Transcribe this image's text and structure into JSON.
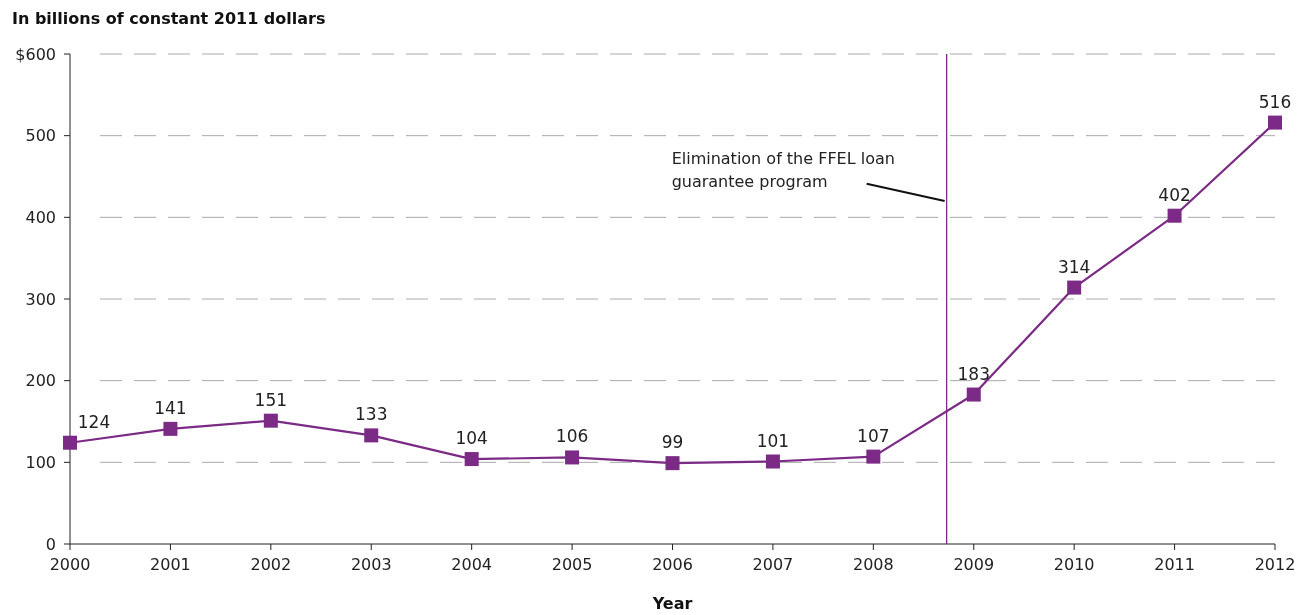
{
  "chart_data": {
    "type": "line",
    "ylabel": "In billions of constant 2011 dollars",
    "xlabel": "Year",
    "x": [
      2000,
      2001,
      2002,
      2003,
      2004,
      2005,
      2006,
      2007,
      2008,
      2009,
      2010,
      2011,
      2012
    ],
    "series": [
      {
        "color": "#7b2a86",
        "values": [
          124,
          141,
          151,
          133,
          104,
          106,
          99,
          101,
          107,
          183,
          314,
          402,
          516
        ]
      }
    ],
    "xlim": [
      2000,
      2012
    ],
    "xticks": [
      2000,
      2001,
      2002,
      2003,
      2004,
      2005,
      2006,
      2007,
      2008,
      2009,
      2010,
      2011,
      2012
    ],
    "ylim": [
      0,
      600
    ],
    "yticks": [
      0,
      100,
      200,
      300,
      400,
      500,
      {
        "value": 600,
        "label": "$600"
      }
    ],
    "grid": "y",
    "marker": "square",
    "line_style": "solid",
    "data_labels": true,
    "ref_lines": [
      {
        "axis": "x",
        "value": 2008.73,
        "label": "Elimination of the FFEL loan guarantee program",
        "color": "#7b2a86"
      }
    ]
  }
}
